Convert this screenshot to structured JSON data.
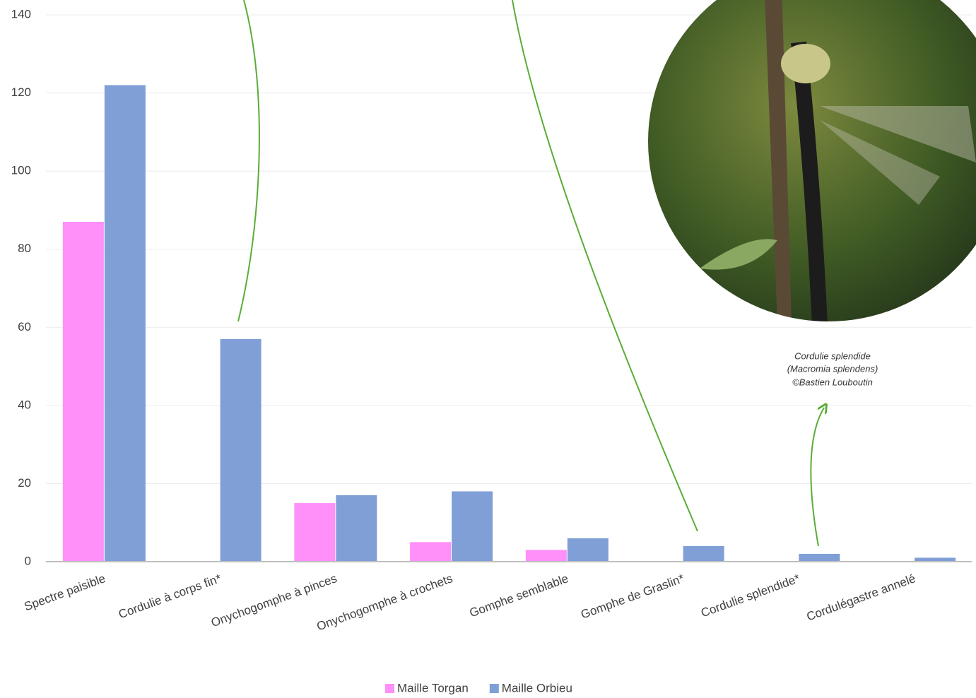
{
  "chart_data": {
    "type": "bar",
    "categories": [
      "Spectre paisible",
      "Cordulie à corps fin*",
      "Onychogomphe à pinces",
      "Onychogomphe à crochets",
      "Gomphe semblable",
      "Gomphe de Graslin*",
      "Cordulie splendide*",
      "Cordulégastre annelé"
    ],
    "series": [
      {
        "name": "Maille Torgan",
        "color": "#ff8ff9",
        "values": [
          87,
          0,
          15,
          5,
          3,
          0,
          0,
          0
        ]
      },
      {
        "name": "Maille Orbieu",
        "color": "#7f9fd6",
        "values": [
          122,
          57,
          17,
          18,
          6,
          4,
          2,
          1
        ]
      }
    ],
    "ylim": [
      0,
      140
    ],
    "yticks": [
      0,
      20,
      40,
      60,
      80,
      100,
      120,
      140
    ],
    "grid": true,
    "annotations": [
      "Cordulie splendide",
      "(Macromia splendens)",
      "©Bastien Louboutin"
    ]
  }
}
